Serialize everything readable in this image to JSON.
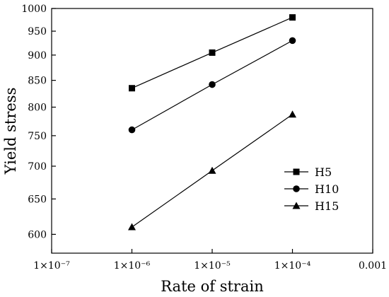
{
  "chart_data": {
    "type": "line",
    "xscale": "log",
    "yscale": "log",
    "xlabel": "Rate of strain",
    "ylabel": "Yield stress",
    "xlim": [
      1e-07,
      0.001
    ],
    "ylim": [
      575,
      1000
    ],
    "x_ticks": [
      {
        "value": 1e-07,
        "label": "1×10⁻⁷"
      },
      {
        "value": 1e-06,
        "label": "1×10⁻⁶"
      },
      {
        "value": 1e-05,
        "label": "1×10⁻⁵"
      },
      {
        "value": 0.0001,
        "label": "1×10⁻⁴"
      },
      {
        "value": 0.001,
        "label": "0.001"
      }
    ],
    "y_ticks": [
      {
        "value": 600,
        "label": "600"
      },
      {
        "value": 650,
        "label": "650"
      },
      {
        "value": 700,
        "label": "700"
      },
      {
        "value": 750,
        "label": "750"
      },
      {
        "value": 800,
        "label": "800"
      },
      {
        "value": 850,
        "label": "850"
      },
      {
        "value": 900,
        "label": "900"
      },
      {
        "value": 950,
        "label": "950"
      },
      {
        "value": 1000,
        "label": "1000"
      }
    ],
    "grid": false,
    "legend_position": "bottom-right",
    "x": [
      1e-06,
      1e-05,
      0.0001
    ],
    "series": [
      {
        "name": "H5",
        "marker": "square",
        "values": [
          835,
          905,
          980
        ]
      },
      {
        "name": "H10",
        "marker": "circle",
        "values": [
          760,
          842,
          930
        ]
      },
      {
        "name": "H15",
        "marker": "triangle",
        "values": [
          610,
          693,
          787
        ]
      }
    ],
    "colors": {
      "line": "#000000",
      "marker": "#000000"
    }
  }
}
